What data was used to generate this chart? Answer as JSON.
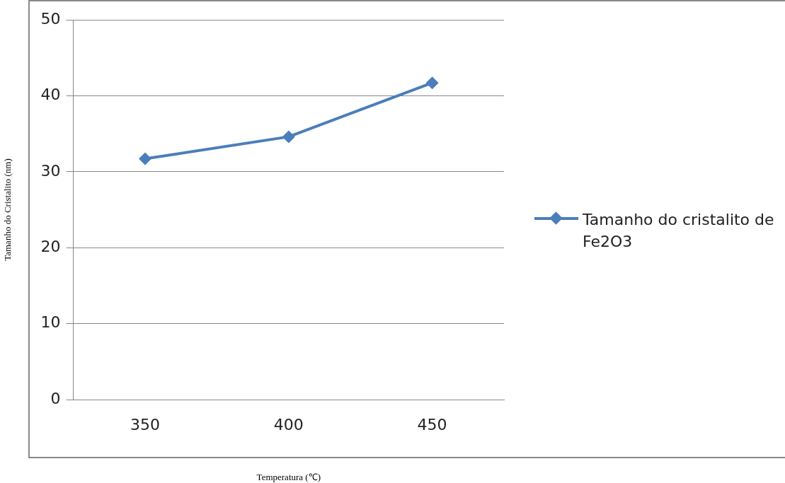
{
  "chart_data": {
    "type": "line",
    "categories": [
      "350",
      "400",
      "450"
    ],
    "series": [
      {
        "name": "Tamanho do cristalito de Fe2O3",
        "color": "#4a7ebb",
        "values": [
          31.7,
          34.6,
          41.7
        ]
      }
    ],
    "xlabel": "Temperatura (℃)",
    "ylabel": "Tamanho do Cristalito (nm)",
    "ylim": [
      0,
      50
    ],
    "yticks": [
      0,
      10,
      20,
      30,
      40,
      50
    ],
    "grid": "y",
    "legend": "right",
    "marker": "diamond",
    "line_style": "solid"
  }
}
